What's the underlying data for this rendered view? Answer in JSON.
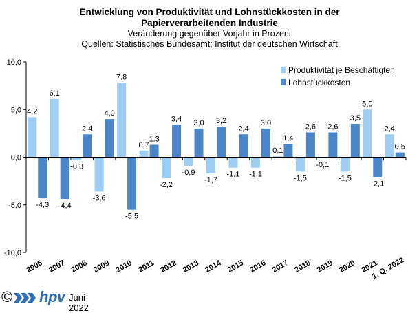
{
  "title": {
    "line1": "Entwicklung von Produktivität und Lohnstückkosten  in der",
    "line2": "Papierverarbeitenden Industrie",
    "subtitle": "Veränderung  gegenüber  Vorjahr  in Prozent",
    "source": "Quellen: Statistisches Bundesamt; Institut der deutschen Wirtschaft"
  },
  "footer": {
    "copyright": "©",
    "brand": "hpv",
    "date": "Juni 2022",
    "logo_icon": "hpv-chevron-logo-icon"
  },
  "chart_data": {
    "type": "bar",
    "categories": [
      "2006",
      "2007",
      "2008",
      "2009",
      "2010",
      "2011",
      "2012",
      "2013",
      "2014",
      "2015",
      "2016",
      "2017",
      "2018",
      "2019",
      "2020",
      "2021",
      "2022"
    ],
    "category_labels": [
      "2006",
      "2007",
      "2008",
      "2009",
      "2010",
      "2011",
      "2012",
      "2013",
      "2014",
      "2015",
      "2016",
      "2017",
      "2018",
      "2019",
      "2020",
      "2021",
      "1. Q. 2022"
    ],
    "series": [
      {
        "name": "Produktivität je Beschäftigten",
        "color": "#9fcdf2",
        "values": [
          4.2,
          6.1,
          -0.3,
          -3.6,
          7.8,
          0.7,
          -2.2,
          -0.9,
          -1.7,
          -1.1,
          -1.1,
          0.1,
          -1.5,
          -0.1,
          -1.5,
          5.0,
          2.4
        ],
        "labels": [
          "4,2",
          "6,1",
          "-0,3",
          "-3,6",
          "7,8",
          "0,7",
          "-2,2",
          "-0,9",
          "-1,7",
          "-1,1",
          "-1,1",
          "0,1",
          "-1,5",
          "-0,1",
          "-1,5",
          "5,0",
          "2,4"
        ]
      },
      {
        "name": "Lohnstückkosten",
        "color": "#4a86c8",
        "values": [
          -4.3,
          -4.4,
          2.4,
          4.0,
          -5.5,
          1.3,
          3.4,
          3.0,
          3.2,
          2.4,
          3.0,
          1.4,
          2.6,
          2.6,
          3.5,
          -2.1,
          0.5
        ],
        "labels": [
          "-4,3",
          "-4,4",
          "2,4",
          "4,0",
          "-5,5",
          "1,3",
          "3,4",
          "3,0",
          "3,2",
          "2,4",
          "3,0",
          "1,4",
          "2,6",
          "2,6",
          "3,5",
          "-2,1",
          "0,5"
        ]
      }
    ],
    "ylim": [
      -10,
      10
    ],
    "yticks": [
      10,
      5,
      0,
      -5,
      -10
    ],
    "ytick_labels": [
      "10,0",
      "5,0",
      "0,0",
      "-5,0",
      "-10,0"
    ],
    "legend_position": "top-right",
    "grid": false
  }
}
